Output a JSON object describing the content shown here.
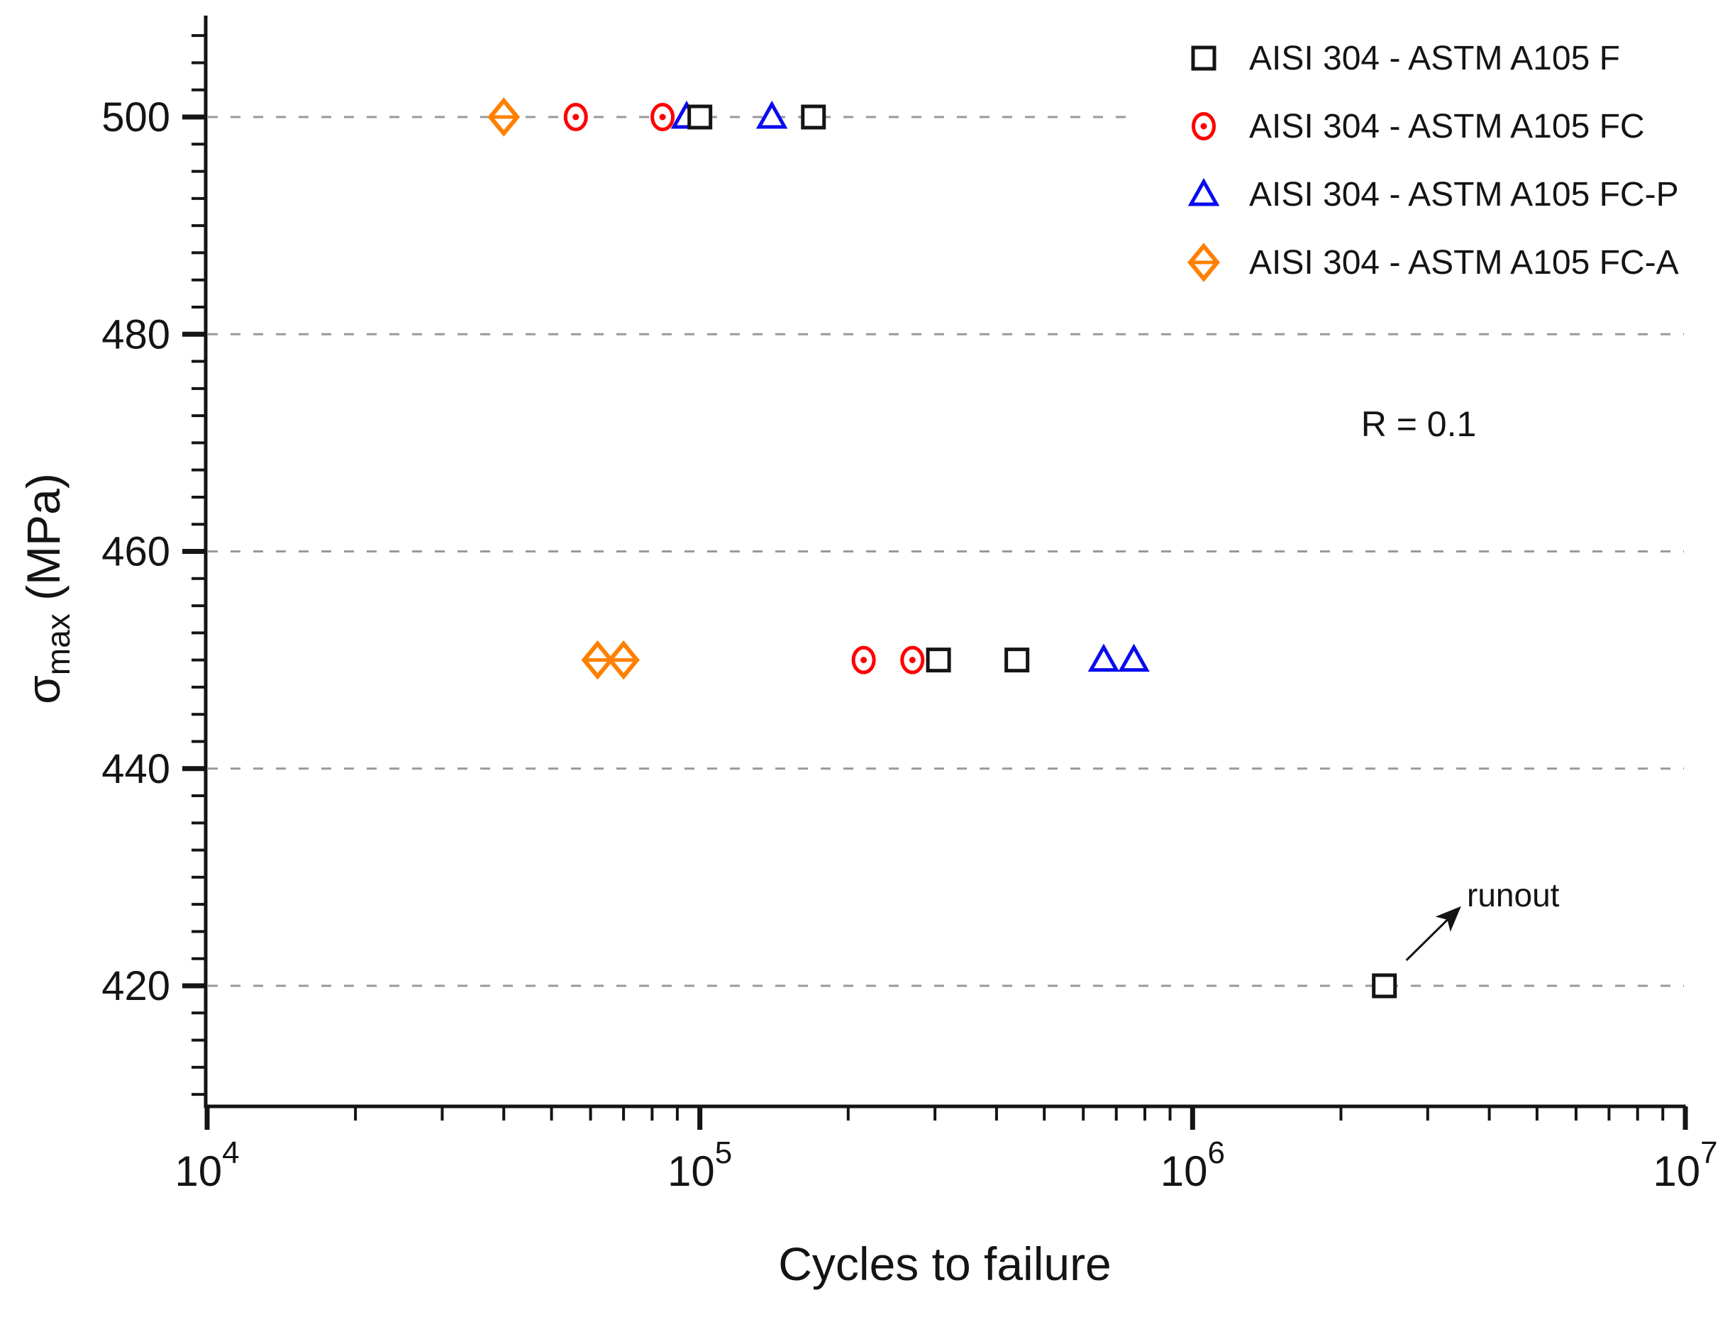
{
  "figure": {
    "background": "#ffffff",
    "axis_color": "#141414",
    "grid_color": "#999999"
  },
  "x_axis": {
    "title": "Cycles to failure",
    "scale": "log",
    "ticks": [
      {
        "value": 10000,
        "base": "10",
        "exp": "4"
      },
      {
        "value": 100000,
        "base": "10",
        "exp": "5"
      },
      {
        "value": 1000000,
        "base": "10",
        "exp": "6"
      },
      {
        "value": 10000000,
        "base": "10",
        "exp": "7"
      }
    ]
  },
  "y_axis": {
    "symbol": "σ",
    "subscript": "max",
    "unit": " (MPa)",
    "ticks": [
      420,
      440,
      460,
      480,
      500
    ]
  },
  "legend": {
    "items": [
      {
        "label": "AISI 304 - ASTM A105 F",
        "marker": "square",
        "color": "#141414"
      },
      {
        "label": "AISI 304 - ASTM A105 FC",
        "marker": "circle-dot",
        "color": "#fe0000"
      },
      {
        "label": "AISI 304 - ASTM A105 FC-P",
        "marker": "triangle",
        "color": "#0a0aee"
      },
      {
        "label": "AISI 304 - ASTM A105 FC-A",
        "marker": "diamond-line",
        "color": "#ff8000"
      }
    ]
  },
  "annotations": {
    "r_condition": "R = 0.1",
    "runout": {
      "text": "runout",
      "points_to": [
        2450000,
        420
      ]
    }
  },
  "chart_data": {
    "type": "scatter",
    "title": "",
    "xlabel": "Cycles to failure",
    "ylabel": "σmax (MPa)",
    "x_scale": "log",
    "xlim": [
      10000,
      10000000
    ],
    "ylim": [
      409,
      509.3
    ],
    "y_major_ticks": [
      420,
      440,
      460,
      480,
      500
    ],
    "y_minor_step": 2.5,
    "x_major_ticks": [
      10000,
      100000,
      1000000,
      10000000
    ],
    "grid": "horizontal-dashed",
    "legend_position": "top-right",
    "series": [
      {
        "name": "AISI 304 - ASTM A105 F",
        "marker": "square",
        "color": "#141414",
        "points": [
          [
            100000,
            500
          ],
          [
            170000,
            500
          ],
          [
            305000,
            450
          ],
          [
            440000,
            450
          ],
          [
            2450000,
            420
          ]
        ]
      },
      {
        "name": "AISI 304 - ASTM A105 FC",
        "marker": "circle-dot",
        "color": "#fe0000",
        "points": [
          [
            56000,
            500
          ],
          [
            84000,
            500
          ],
          [
            215000,
            450
          ],
          [
            270000,
            450
          ]
        ]
      },
      {
        "name": "AISI 304 - ASTM A105 FC-P",
        "marker": "triangle",
        "color": "#0a0aee",
        "points": [
          [
            94000,
            500
          ],
          [
            140000,
            500
          ],
          [
            660000,
            450
          ],
          [
            760000,
            450
          ]
        ]
      },
      {
        "name": "AISI 304 - ASTM A105 FC-A",
        "marker": "diamond-line",
        "color": "#ff8000",
        "points": [
          [
            40000,
            500
          ],
          [
            62000,
            450
          ],
          [
            70000,
            450
          ]
        ]
      }
    ],
    "annotations": [
      {
        "text": "runout",
        "points_to": [
          2450000,
          420
        ]
      },
      {
        "text": "R = 0.1"
      }
    ]
  }
}
